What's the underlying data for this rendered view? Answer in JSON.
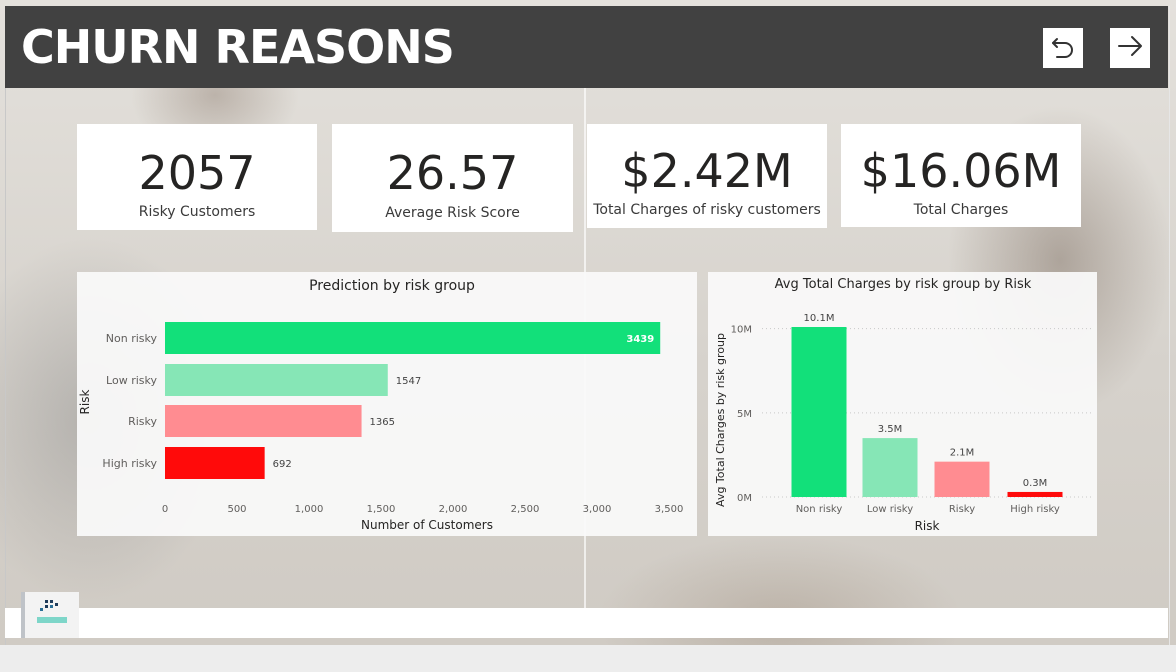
{
  "header": {
    "title": "CHURN REASONS",
    "back_icon": "undo-arrow-icon",
    "forward_icon": "right-arrow-icon"
  },
  "kpis": [
    {
      "value": "2057",
      "label": "Risky Customers"
    },
    {
      "value": "26.57",
      "label": "Average Risk Score"
    },
    {
      "value": "$2.42M",
      "label": "Total Charges of risky customers"
    },
    {
      "value": "$16.06M",
      "label": "Total Charges"
    }
  ],
  "colors": {
    "header": "#414141",
    "non_risky": "#12E07A",
    "low_risky": "#86E6B6",
    "risky": "#FF8C91",
    "high_risky": "#FF0A0A"
  },
  "chart_data": [
    {
      "type": "bar",
      "orientation": "horizontal",
      "title": "Prediction by risk group",
      "xlabel": "Number of Customers",
      "ylabel": "Risk",
      "categories": [
        "Non risky",
        "Low risky",
        "Risky",
        "High risky"
      ],
      "values": [
        3439,
        1547,
        1365,
        692
      ],
      "data_labels": [
        "3439",
        "1547",
        "1365",
        "692"
      ],
      "xlim": [
        0,
        3500
      ],
      "xticks": [
        0,
        500,
        1000,
        1500,
        2000,
        2500,
        3000,
        3500
      ],
      "xtick_labels": [
        "0",
        "500",
        "1,000",
        "1,500",
        "2,000",
        "2,500",
        "3,000",
        "3,500"
      ],
      "colors": [
        "#12E07A",
        "#86E6B6",
        "#FF8C91",
        "#FF0A0A"
      ]
    },
    {
      "type": "bar",
      "title": "Avg Total Charges by risk group by Risk",
      "xlabel": "Risk",
      "ylabel": "Avg Total Charges by risk group",
      "categories": [
        "Non risky",
        "Low risky",
        "Risky",
        "High risky"
      ],
      "values": [
        10100000,
        3500000,
        2100000,
        300000
      ],
      "data_labels": [
        "10.1M",
        "3.5M",
        "2.1M",
        "0.3M"
      ],
      "ylim": [
        0,
        10100000
      ],
      "yticks": [
        0,
        5000000,
        10000000
      ],
      "ytick_labels": [
        "0M",
        "5M",
        "10M"
      ],
      "grid": true,
      "colors": [
        "#12E07A",
        "#86E6B6",
        "#FF8C91",
        "#FF0A0A"
      ]
    }
  ],
  "footer": {
    "logo_icon": "company-logo-icon"
  }
}
